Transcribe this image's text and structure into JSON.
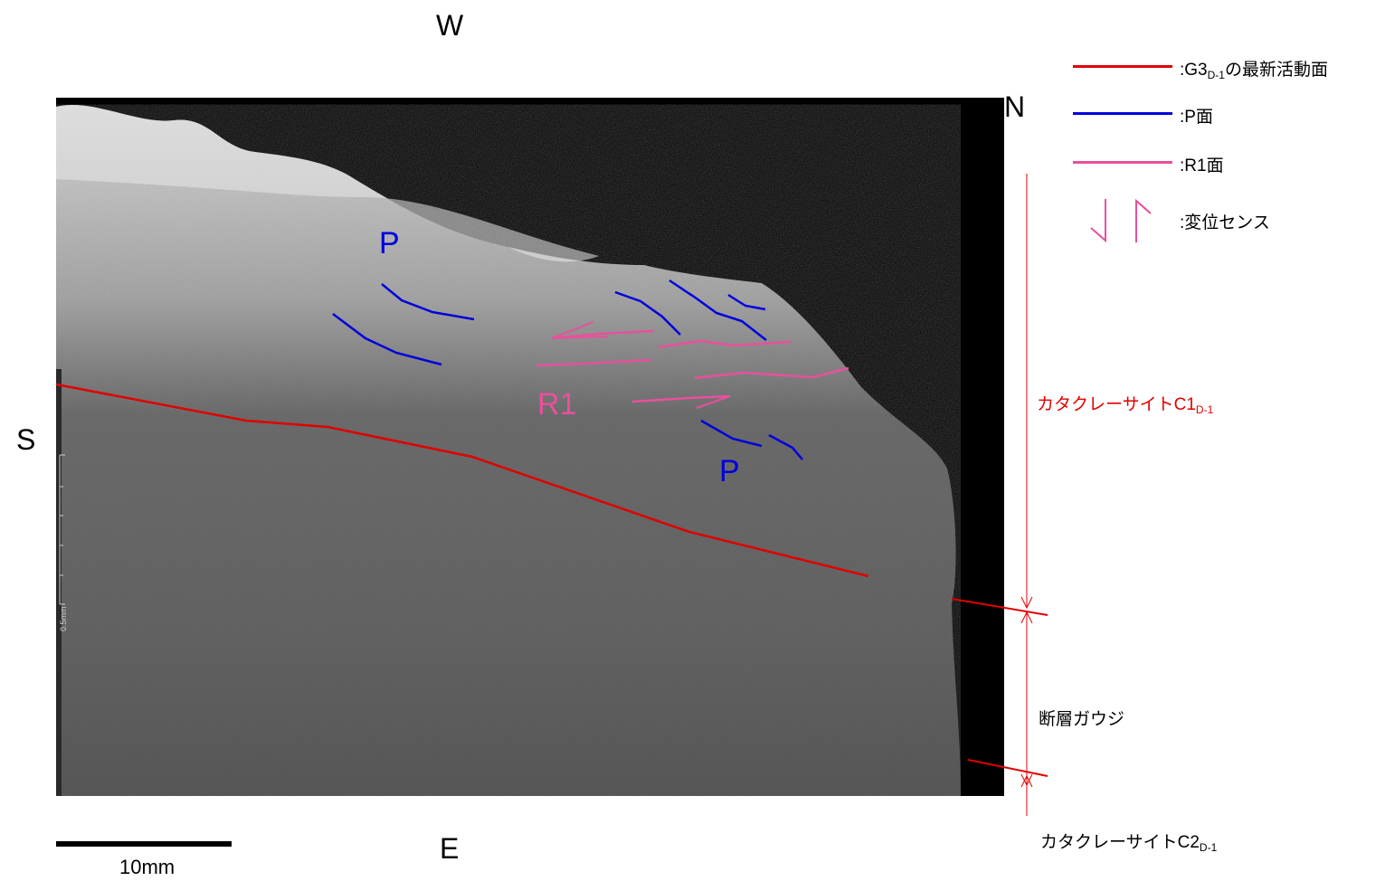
{
  "compass": {
    "west": "W",
    "north": "N",
    "south": "S",
    "east": "E"
  },
  "legend": {
    "latest_plane": {
      "prefix": ":G3",
      "sub": "D-1",
      "suffix": "の最新活動面",
      "color": "#e00000"
    },
    "p_plane": {
      "text": ":P面",
      "color": "#0000dd"
    },
    "r1_plane": {
      "text": ":R1面",
      "color": "#e8509c"
    },
    "sense": {
      "text": ":変位センス",
      "color": "#e8509c"
    }
  },
  "annotations": {
    "p_upper": "P",
    "p_lower": "P",
    "r1": "R1"
  },
  "zones": {
    "cataclasite_c1": {
      "text": "カタクレーサイトC1",
      "sub": "D-1",
      "color": "#e00000"
    },
    "fault_gouge": {
      "text": "断層ガウジ"
    },
    "cataclasite_c2": {
      "text": "カタクレーサイトC2",
      "sub": "D-1"
    }
  },
  "scale_bar": {
    "label": "10mm"
  },
  "image_scale_label": "0.5mm"
}
